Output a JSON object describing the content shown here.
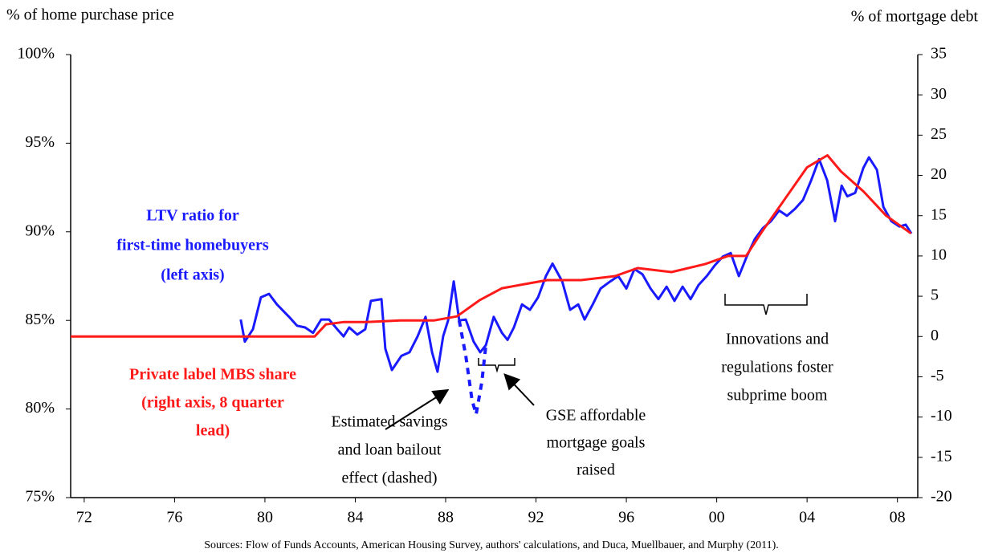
{
  "chart_data": {
    "type": "line",
    "y_axis_label": "% of home purchase price",
    "y2_axis_label": "% of mortgage debt",
    "source": "Sources: Flow of Funds Accounts, American Housing Survey, authors' calculations, and Duca, Muellbauer, and Murphy (2011).",
    "xlim": [
      1971.4,
      2008.9
    ],
    "xticks": [
      {
        "value": 1972,
        "label": "72"
      },
      {
        "value": 1976,
        "label": "76"
      },
      {
        "value": 1980,
        "label": "80"
      },
      {
        "value": 1984,
        "label": "84"
      },
      {
        "value": 1988,
        "label": "88"
      },
      {
        "value": 1992,
        "label": "92"
      },
      {
        "value": 1996,
        "label": "96"
      },
      {
        "value": 2000,
        "label": "00"
      },
      {
        "value": 2004,
        "label": "04"
      },
      {
        "value": 2008,
        "label": "08"
      }
    ],
    "ylim": [
      75,
      100
    ],
    "yticks": [
      {
        "value": 75,
        "label": "75%"
      },
      {
        "value": 80,
        "label": "80%"
      },
      {
        "value": 85,
        "label": "85%"
      },
      {
        "value": 90,
        "label": "90%"
      },
      {
        "value": 95,
        "label": "95%"
      },
      {
        "value": 100,
        "label": "100%"
      }
    ],
    "y2lim": [
      -20,
      35
    ],
    "y2ticks": [
      -20,
      -15,
      -10,
      -5,
      0,
      5,
      10,
      15,
      20,
      25,
      30,
      35
    ],
    "grid": false,
    "series": [
      {
        "color": "#1a1aff",
        "axis": "y",
        "dashed": false,
        "x": [
          1978.93,
          1979.11,
          1979.47,
          1979.82,
          1980.18,
          1980.53,
          1981.07,
          1981.42,
          1981.78,
          1982.13,
          1982.49,
          1982.84,
          1983.2,
          1983.48,
          1983.73,
          1984.09,
          1984.44,
          1984.69,
          1985.16,
          1985.33,
          1985.62,
          1986.04,
          1986.4,
          1986.76,
          1987.11,
          1987.4,
          1987.64,
          1987.89,
          1988.11,
          1988.36,
          1988.6,
          1988.89,
          1989.24,
          1989.53,
          1989.78,
          1990.13,
          1990.49,
          1990.74,
          1991.02,
          1991.38,
          1991.73,
          1992.09,
          1992.44,
          1992.73,
          1993.16,
          1993.51,
          1993.87,
          1994.15,
          1994.51,
          1994.86,
          1995.29,
          1995.64,
          1996.0,
          1996.36,
          1996.71,
          1997.07,
          1997.42,
          1997.78,
          1998.13,
          1998.49,
          1998.84,
          1999.2,
          1999.56,
          1999.91,
          2000.27,
          2000.62,
          2000.98,
          2001.33,
          2001.69,
          2002.04,
          2002.4,
          2002.76,
          2003.11,
          2003.47,
          2003.82,
          2004.18,
          2004.53,
          2004.89,
          2005.24,
          2005.53,
          2005.78,
          2006.13,
          2006.49,
          2006.74,
          2007.09,
          2007.38,
          2007.73,
          2008.09,
          2008.37,
          2008.62
        ],
        "values": [
          85.05,
          83.8,
          84.5,
          86.3,
          86.5,
          85.9,
          85.2,
          84.7,
          84.6,
          84.3,
          85.05,
          85.05,
          84.5,
          84.1,
          84.6,
          84.2,
          84.5,
          86.1,
          86.2,
          83.4,
          82.2,
          83.0,
          83.2,
          84.1,
          85.2,
          83.2,
          82.1,
          84.1,
          85.0,
          87.2,
          85.0,
          85.05,
          83.8,
          83.2,
          83.6,
          85.2,
          84.3,
          83.9,
          84.6,
          85.9,
          85.6,
          86.3,
          87.5,
          88.2,
          87.2,
          85.6,
          85.9,
          85.05,
          85.9,
          86.8,
          87.2,
          87.5,
          86.8,
          87.9,
          87.6,
          86.8,
          86.2,
          86.9,
          86.1,
          86.9,
          86.2,
          87.0,
          87.5,
          88.1,
          88.6,
          88.8,
          87.5,
          88.6,
          89.6,
          90.2,
          90.6,
          91.2,
          90.9,
          91.3,
          91.8,
          92.9,
          94.1,
          92.9,
          90.6,
          92.6,
          92.0,
          92.2,
          93.6,
          94.2,
          93.5,
          91.4,
          90.6,
          90.3,
          90.4,
          89.9
        ]
      },
      {
        "color": "#1a1aff",
        "axis": "y",
        "dashed": true,
        "x": [
          1988.6,
          1988.89,
          1989.17,
          1989.35,
          1989.6,
          1989.78
        ],
        "values": [
          85.0,
          83.0,
          80.5,
          79.7,
          81.5,
          83.6
        ]
      },
      {
        "color": "#ff1a1a",
        "axis": "y2",
        "dashed": false,
        "x": [
          1971.4,
          1982.2,
          1982.7,
          1983.5,
          1984.5,
          1986.0,
          1987.5,
          1988.5,
          1989.5,
          1990.5,
          1991.5,
          1992.5,
          1994.0,
          1995.5,
          1996.5,
          1998.0,
          1999.5,
          2000.5,
          2001.3,
          2002.0,
          2003.0,
          2004.0,
          2004.9,
          2005.5,
          2006.5,
          2007.5,
          2008.6
        ],
        "values": [
          0,
          0,
          1.5,
          1.8,
          1.8,
          2,
          2,
          2.5,
          4.5,
          6,
          6.5,
          7,
          7,
          7.5,
          8.5,
          8,
          9,
          10,
          10,
          13,
          17,
          21,
          22.5,
          20.5,
          18,
          15,
          12.8
        ]
      }
    ],
    "annotations": [
      {
        "lines": [
          "LTV ratio for",
          "first-time homebuyers",
          "(left  axis)"
        ],
        "color": "#1a1aff",
        "bold": true
      },
      {
        "lines": [
          "Private label MBS share",
          "(right axis, 8 quarter",
          "lead)"
        ],
        "color": "#ff1a1a",
        "bold": true
      },
      {
        "lines": [
          "Estimated savings",
          "and loan bailout",
          "effect (dashed)"
        ],
        "color": "#000000",
        "bold": false
      },
      {
        "lines": [
          "GSE affordable",
          "mortgage goals",
          "raised"
        ],
        "color": "#000000",
        "bold": false
      },
      {
        "lines": [
          "Innovations and",
          "regulations foster",
          "subprime boom"
        ],
        "color": "#000000",
        "bold": false
      }
    ]
  }
}
